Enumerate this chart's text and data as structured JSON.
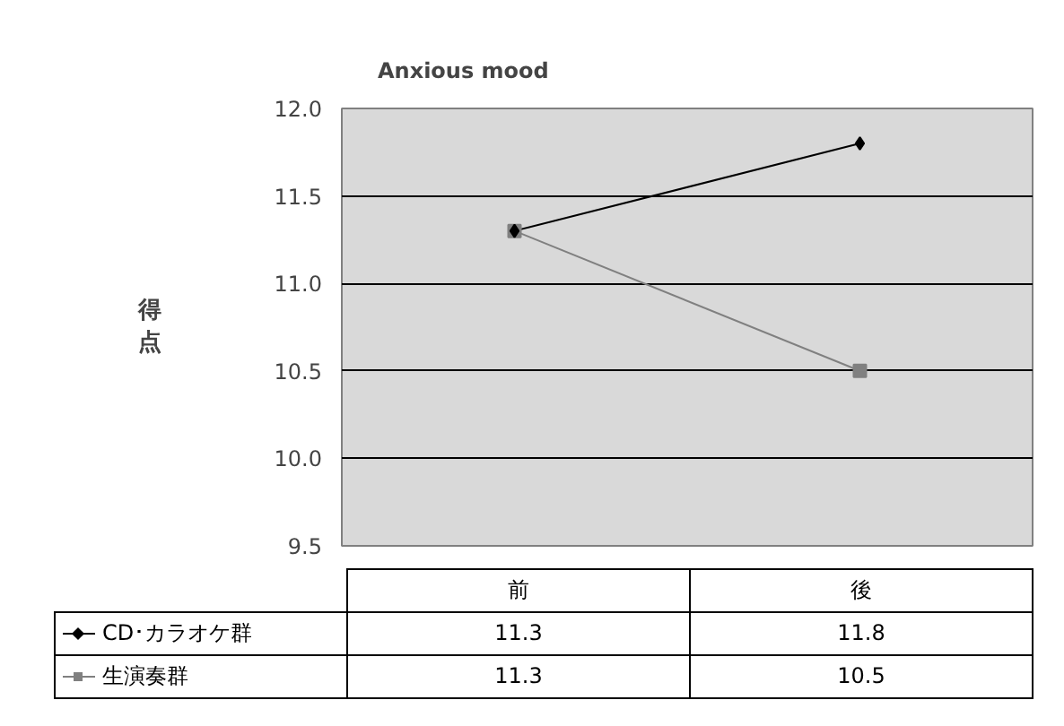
{
  "chart_data": {
    "type": "line",
    "title": "Anxious mood",
    "ylabel": "得点",
    "categories": [
      "前",
      "後"
    ],
    "series": [
      {
        "name": "CD･カラオケ群",
        "color": "#000000",
        "marker": "diamond",
        "values": [
          11.3,
          11.8
        ]
      },
      {
        "name": "生演奏群",
        "color": "#808080",
        "marker": "square",
        "values": [
          11.3,
          10.5
        ]
      }
    ],
    "ylim": [
      9.5,
      12.0
    ],
    "yticks": [
      {
        "value": 9.5,
        "label": "9.5"
      },
      {
        "value": 10.0,
        "label": "10.0"
      },
      {
        "value": 10.5,
        "label": "10.5"
      },
      {
        "value": 11.0,
        "label": "11.0"
      },
      {
        "value": 11.5,
        "label": "11.5"
      },
      {
        "value": 12.0,
        "label": "12.0"
      }
    ],
    "grid": "y",
    "tick_labels": "y",
    "legend": "bottom",
    "data_labels": true,
    "line_style": "solid"
  }
}
